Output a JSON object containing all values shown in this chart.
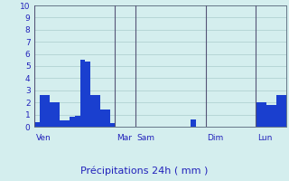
{
  "xlabel": "Précipitations 24h ( mm )",
  "ylim": [
    0,
    10
  ],
  "background_color": "#d4eeee",
  "bar_color": "#1a3fcf",
  "grid_color": "#aacccc",
  "bar_values": [
    0.4,
    2.6,
    2.6,
    2.0,
    2.0,
    0.5,
    0.5,
    0.8,
    0.9,
    5.5,
    5.4,
    2.6,
    2.6,
    1.4,
    1.4,
    0.3,
    0.0,
    0.0,
    0.0,
    0.0,
    0.0,
    0.0,
    0.0,
    0.0,
    0.0,
    0.0,
    0.0,
    0.0,
    0.0,
    0.0,
    0.0,
    0.6,
    0.0,
    0.0,
    0.0,
    0.0,
    0.0,
    0.0,
    0.0,
    0.0,
    0.0,
    0.0,
    0.0,
    0.0,
    2.0,
    2.0,
    1.8,
    1.8,
    2.6,
    2.6
  ],
  "day_labels": [
    "Ven",
    "Mar",
    "Sam",
    "Dim",
    "Lun"
  ],
  "tick_fontsize": 6.5,
  "label_fontsize": 8
}
